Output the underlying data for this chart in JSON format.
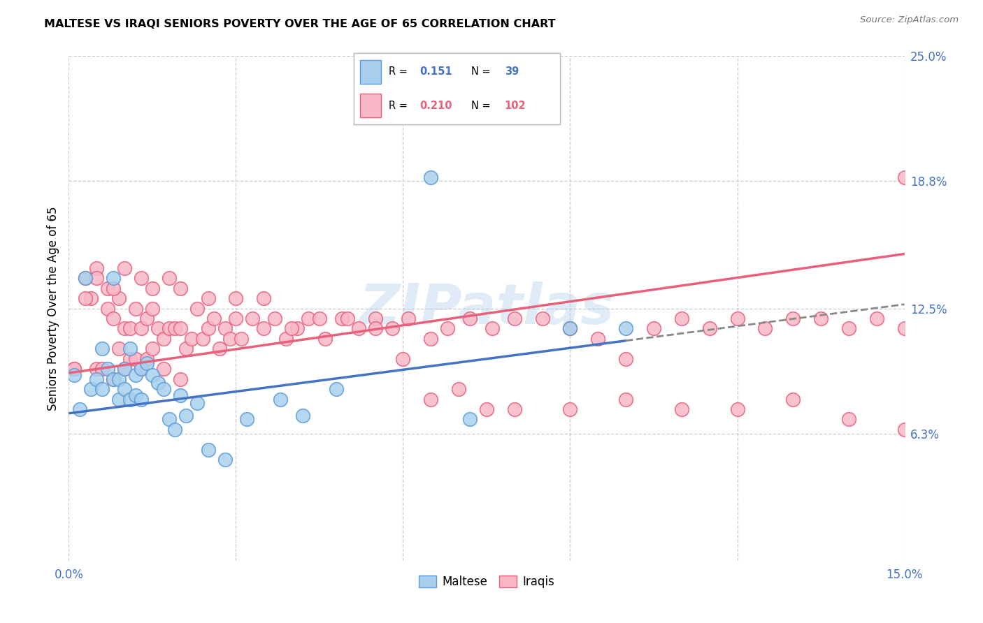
{
  "title": "MALTESE VS IRAQI SENIORS POVERTY OVER THE AGE OF 65 CORRELATION CHART",
  "source": "Source: ZipAtlas.com",
  "ylabel": "Seniors Poverty Over the Age of 65",
  "xlim": [
    0.0,
    0.15
  ],
  "ylim": [
    0.0,
    0.25
  ],
  "x_tick_positions": [
    0.0,
    0.03,
    0.06,
    0.09,
    0.12,
    0.15
  ],
  "y_tick_vals_right": [
    0.063,
    0.125,
    0.188,
    0.25
  ],
  "y_tick_labels_right": [
    "6.3%",
    "12.5%",
    "18.8%",
    "25.0%"
  ],
  "maltese_color": "#A8D0EE",
  "iraqi_color": "#F9B8C8",
  "maltese_edge_color": "#5B9BD5",
  "iraqi_edge_color": "#E8607A",
  "maltese_line_color": "#4472C4",
  "iraqi_line_color": "#E8607A",
  "r_maltese": "0.151",
  "n_maltese": "39",
  "r_iraqi": "0.210",
  "n_iraqi": "102",
  "maltese_x": [
    0.001,
    0.002,
    0.003,
    0.004,
    0.005,
    0.006,
    0.006,
    0.007,
    0.008,
    0.008,
    0.009,
    0.009,
    0.01,
    0.01,
    0.011,
    0.011,
    0.012,
    0.012,
    0.013,
    0.013,
    0.014,
    0.015,
    0.016,
    0.017,
    0.018,
    0.019,
    0.02,
    0.021,
    0.023,
    0.025,
    0.028,
    0.032,
    0.038,
    0.042,
    0.048,
    0.065,
    0.072,
    0.09,
    0.1
  ],
  "maltese_y": [
    0.092,
    0.075,
    0.14,
    0.085,
    0.09,
    0.105,
    0.085,
    0.095,
    0.09,
    0.14,
    0.09,
    0.08,
    0.095,
    0.085,
    0.105,
    0.08,
    0.092,
    0.082,
    0.095,
    0.08,
    0.098,
    0.092,
    0.088,
    0.085,
    0.07,
    0.065,
    0.082,
    0.072,
    0.078,
    0.055,
    0.05,
    0.07,
    0.08,
    0.072,
    0.085,
    0.19,
    0.07,
    0.115,
    0.115
  ],
  "iraqi_x": [
    0.001,
    0.003,
    0.004,
    0.005,
    0.005,
    0.006,
    0.007,
    0.008,
    0.008,
    0.009,
    0.009,
    0.01,
    0.01,
    0.011,
    0.011,
    0.012,
    0.012,
    0.013,
    0.013,
    0.014,
    0.014,
    0.015,
    0.015,
    0.016,
    0.017,
    0.017,
    0.018,
    0.019,
    0.02,
    0.02,
    0.021,
    0.022,
    0.023,
    0.024,
    0.025,
    0.026,
    0.027,
    0.028,
    0.029,
    0.03,
    0.031,
    0.033,
    0.035,
    0.037,
    0.039,
    0.041,
    0.043,
    0.046,
    0.049,
    0.052,
    0.055,
    0.058,
    0.061,
    0.065,
    0.068,
    0.072,
    0.076,
    0.08,
    0.085,
    0.09,
    0.095,
    0.1,
    0.105,
    0.11,
    0.115,
    0.12,
    0.125,
    0.13,
    0.135,
    0.14,
    0.145,
    0.15,
    0.001,
    0.003,
    0.005,
    0.007,
    0.008,
    0.01,
    0.013,
    0.015,
    0.018,
    0.02,
    0.025,
    0.03,
    0.035,
    0.04,
    0.045,
    0.05,
    0.055,
    0.06,
    0.065,
    0.07,
    0.075,
    0.08,
    0.09,
    0.1,
    0.11,
    0.12,
    0.13,
    0.14,
    0.15,
    0.15
  ],
  "iraqi_y": [
    0.095,
    0.14,
    0.13,
    0.145,
    0.095,
    0.095,
    0.125,
    0.12,
    0.09,
    0.13,
    0.105,
    0.115,
    0.095,
    0.115,
    0.1,
    0.125,
    0.1,
    0.115,
    0.095,
    0.12,
    0.1,
    0.125,
    0.105,
    0.115,
    0.11,
    0.095,
    0.115,
    0.115,
    0.115,
    0.09,
    0.105,
    0.11,
    0.125,
    0.11,
    0.115,
    0.12,
    0.105,
    0.115,
    0.11,
    0.12,
    0.11,
    0.12,
    0.115,
    0.12,
    0.11,
    0.115,
    0.12,
    0.11,
    0.12,
    0.115,
    0.12,
    0.115,
    0.12,
    0.11,
    0.115,
    0.12,
    0.115,
    0.12,
    0.12,
    0.115,
    0.11,
    0.1,
    0.115,
    0.12,
    0.115,
    0.12,
    0.115,
    0.12,
    0.12,
    0.115,
    0.12,
    0.115,
    0.095,
    0.13,
    0.14,
    0.135,
    0.135,
    0.145,
    0.14,
    0.135,
    0.14,
    0.135,
    0.13,
    0.13,
    0.13,
    0.115,
    0.12,
    0.12,
    0.115,
    0.1,
    0.08,
    0.085,
    0.075,
    0.075,
    0.075,
    0.08,
    0.075,
    0.075,
    0.08,
    0.07,
    0.065,
    0.19
  ],
  "maltese_trend_x0": 0.0,
  "maltese_trend_x1": 0.1,
  "maltese_trend_y0": 0.073,
  "maltese_trend_y1": 0.109,
  "iraqi_trend_x0": 0.0,
  "iraqi_trend_x1": 0.15,
  "iraqi_trend_y0": 0.093,
  "iraqi_trend_y1": 0.152
}
